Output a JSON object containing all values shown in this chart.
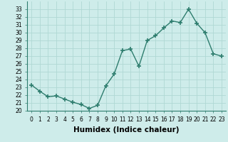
{
  "x": [
    0,
    1,
    2,
    3,
    4,
    5,
    6,
    7,
    8,
    9,
    10,
    11,
    12,
    13,
    14,
    15,
    16,
    17,
    18,
    19,
    20,
    21,
    22,
    23
  ],
  "y": [
    23.3,
    22.5,
    21.8,
    21.9,
    21.5,
    21.1,
    20.8,
    20.3,
    20.7,
    23.2,
    24.7,
    27.7,
    27.9,
    25.7,
    29.0,
    29.6,
    30.6,
    31.5,
    31.3,
    33.0,
    31.2,
    30.0,
    27.3,
    27.0
  ],
  "line_color": "#2e7d6e",
  "marker": "+",
  "markersize": 4,
  "markeredgewidth": 1.2,
  "linewidth": 1.0,
  "background_color": "#ceecea",
  "grid_color": "#b0d8d4",
  "xlabel": "Humidex (Indice chaleur)",
  "ylim": [
    20,
    34
  ],
  "xlim": [
    -0.5,
    23.5
  ],
  "yticks": [
    20,
    21,
    22,
    23,
    24,
    25,
    26,
    27,
    28,
    29,
    30,
    31,
    32,
    33
  ],
  "xticks": [
    0,
    1,
    2,
    3,
    4,
    5,
    6,
    7,
    8,
    9,
    10,
    11,
    12,
    13,
    14,
    15,
    16,
    17,
    18,
    19,
    20,
    21,
    22,
    23
  ],
  "tick_fontsize": 5.5,
  "xlabel_fontsize": 7.5
}
